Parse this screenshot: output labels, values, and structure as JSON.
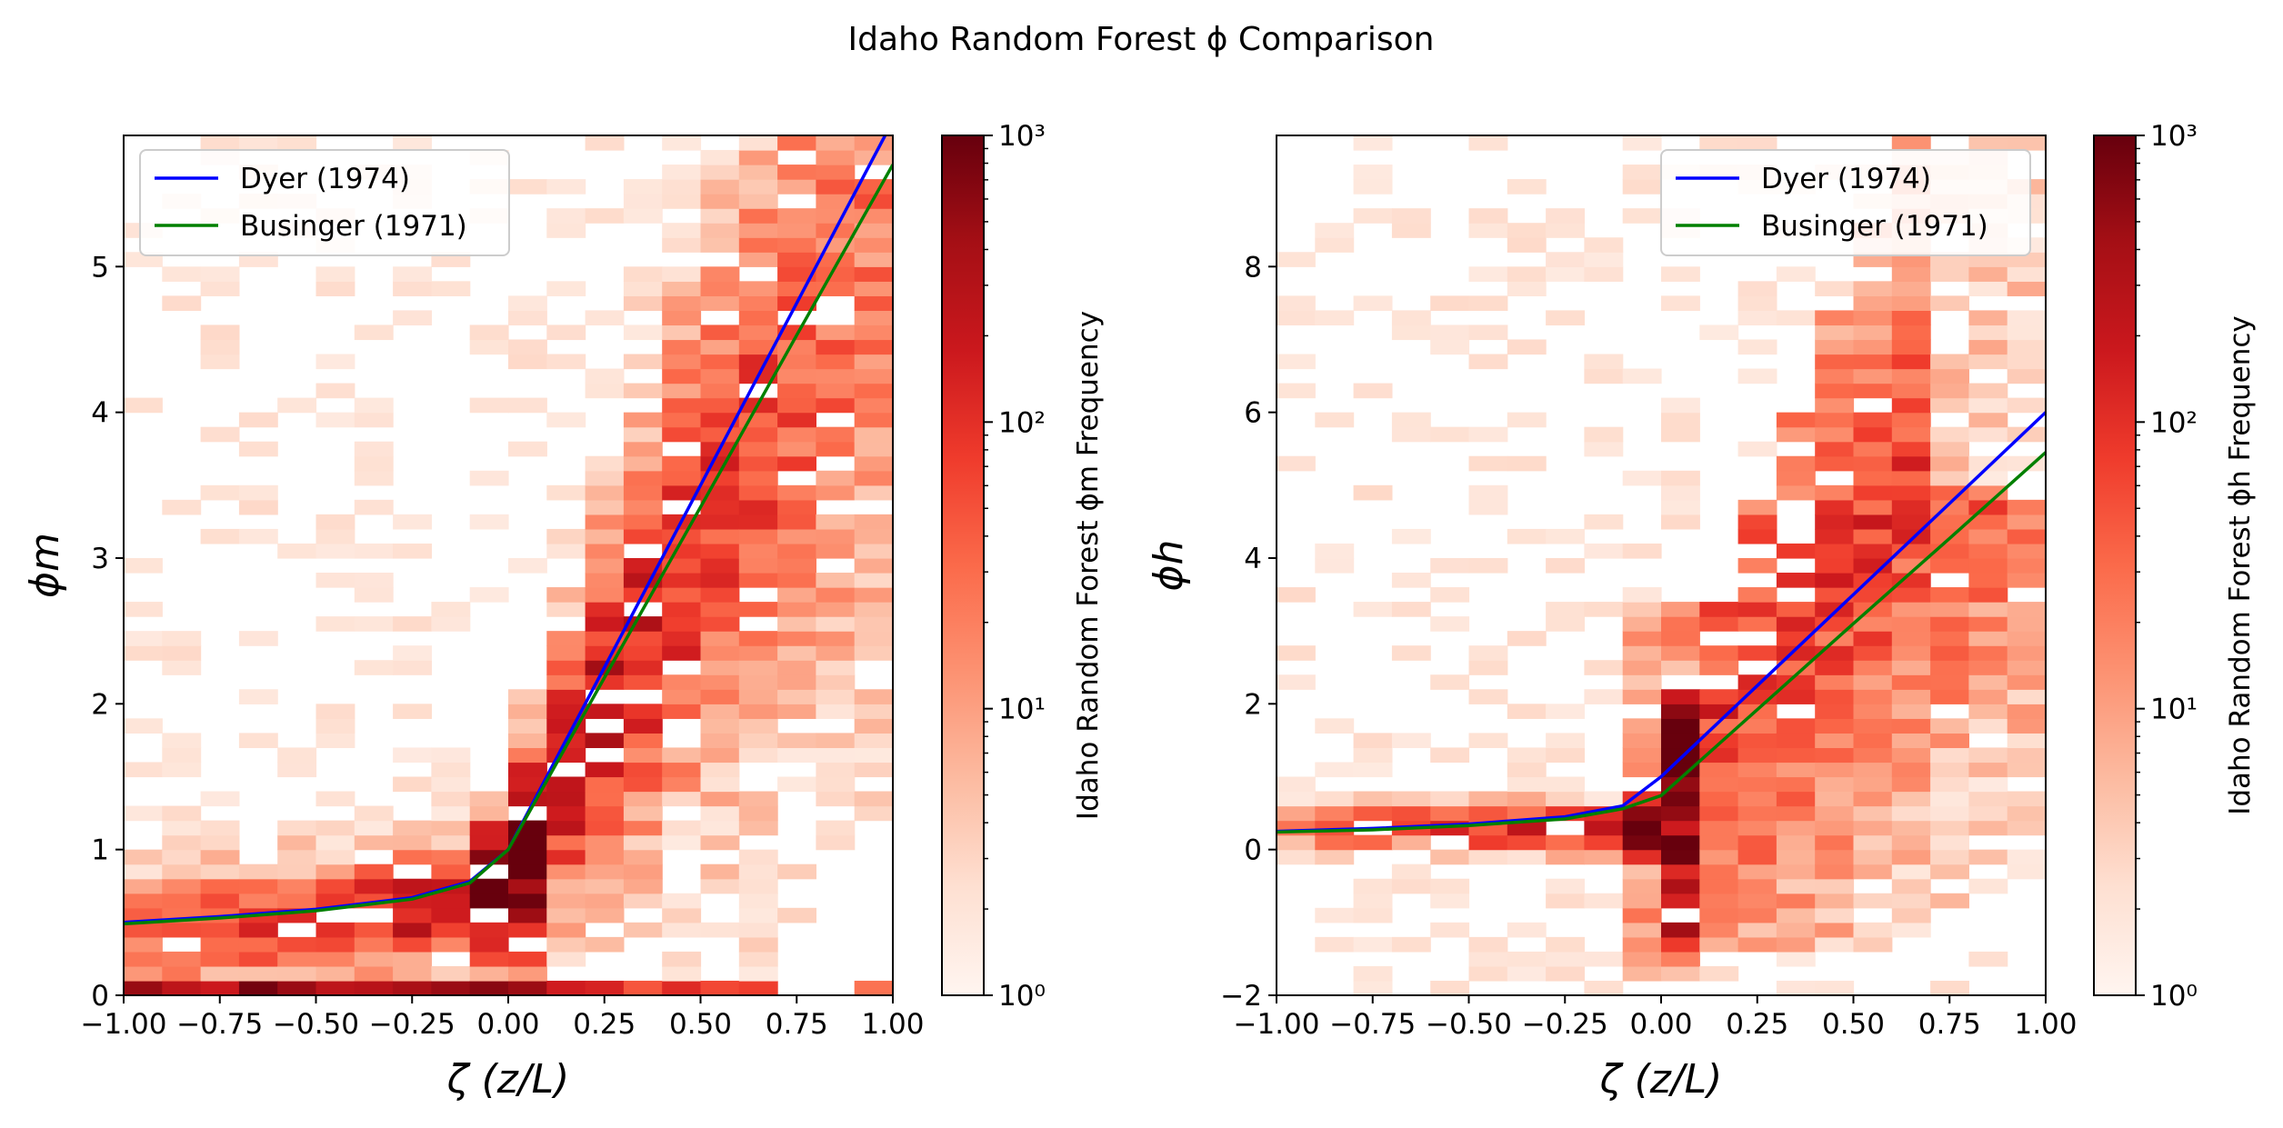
{
  "figure": {
    "title": "Idaho Random Forest ϕ Comparison"
  },
  "colors": {
    "dyer": "#0000ff",
    "businger": "#008000",
    "colormap": [
      "#fff5f0",
      "#fee0d2",
      "#fcbba1",
      "#fc9272",
      "#fb6a4a",
      "#ef3b2c",
      "#cb181d",
      "#a50f15",
      "#67000d"
    ]
  },
  "chart_data": [
    {
      "type": "heatmap",
      "panel": "left",
      "ylabel": "ϕm",
      "xlabel": "ζ (z/L)",
      "xlim": [
        -1.0,
        1.0
      ],
      "ylim": [
        0,
        5.9
      ],
      "xticks": [
        "−1.00",
        "−0.75",
        "−0.50",
        "−0.25",
        "0.00",
        "0.25",
        "0.50",
        "0.75",
        "1.00"
      ],
      "xtick_values": [
        -1.0,
        -0.75,
        -0.5,
        -0.25,
        0.0,
        0.25,
        0.5,
        0.75,
        1.0
      ],
      "yticks": [
        "0",
        "1",
        "2",
        "3",
        "4",
        "5"
      ],
      "ytick_values": [
        0,
        1,
        2,
        3,
        4,
        5
      ],
      "grid": false,
      "legend_position": "upper-left",
      "series": [
        {
          "name": "Dyer (1974)",
          "color": "#0000ff",
          "x": [
            -1.0,
            -0.75,
            -0.5,
            -0.25,
            -0.1,
            0.0,
            0.25,
            0.5,
            0.75,
            1.0
          ],
          "y": [
            0.5,
            0.54,
            0.59,
            0.67,
            0.78,
            1.0,
            2.25,
            3.5,
            4.75,
            6.0
          ]
        },
        {
          "name": "Businger (1971)",
          "color": "#008000",
          "x": [
            -1.0,
            -0.75,
            -0.5,
            -0.25,
            -0.1,
            0.0,
            0.25,
            0.5,
            0.75,
            1.0
          ],
          "y": [
            0.49,
            0.53,
            0.58,
            0.66,
            0.77,
            1.0,
            2.18,
            3.35,
            4.53,
            5.7
          ]
        }
      ],
      "histogram": {
        "x_bins": 20,
        "x_range": [
          -1.0,
          1.0
        ],
        "y_range": [
          0,
          5.9
        ],
        "y_bins": 59,
        "count_range": [
          1,
          1000
        ],
        "log_scale": true
      },
      "colorbar": {
        "label": "Idaho Random Forest ϕm Frequency",
        "ticks": [
          "10⁰",
          "10¹",
          "10²",
          "10³"
        ],
        "tick_values": [
          1,
          10,
          100,
          1000
        ]
      }
    },
    {
      "type": "heatmap",
      "panel": "right",
      "ylabel": "ϕh",
      "xlabel": "ζ (z/L)",
      "xlim": [
        -1.0,
        1.0
      ],
      "ylim": [
        -2,
        9.8
      ],
      "xticks": [
        "−1.00",
        "−0.75",
        "−0.50",
        "−0.25",
        "0.00",
        "0.25",
        "0.50",
        "0.75",
        "1.00"
      ],
      "xtick_values": [
        -1.0,
        -0.75,
        -0.5,
        -0.25,
        0.0,
        0.25,
        0.5,
        0.75,
        1.0
      ],
      "yticks": [
        "−2",
        "0",
        "2",
        "4",
        "6",
        "8"
      ],
      "ytick_values": [
        -2,
        0,
        2,
        4,
        6,
        8
      ],
      "grid": false,
      "legend_position": "upper-right",
      "series": [
        {
          "name": "Dyer (1974)",
          "color": "#0000ff",
          "x": [
            -1.0,
            -0.75,
            -0.5,
            -0.25,
            -0.1,
            0.0,
            0.25,
            0.5,
            0.75,
            1.0
          ],
          "y": [
            0.25,
            0.29,
            0.35,
            0.45,
            0.6,
            1.0,
            2.25,
            3.5,
            4.75,
            6.0
          ]
        },
        {
          "name": "Businger (1971)",
          "color": "#008000",
          "x": [
            -1.0,
            -0.75,
            -0.5,
            -0.25,
            -0.1,
            0.0,
            0.25,
            0.5,
            0.75,
            1.0
          ],
          "y": [
            0.24,
            0.27,
            0.33,
            0.42,
            0.56,
            0.74,
            1.92,
            3.1,
            4.27,
            5.45
          ]
        }
      ],
      "histogram": {
        "x_bins": 20,
        "x_range": [
          -1.0,
          1.0
        ],
        "y_range": [
          -2,
          9.8
        ],
        "y_bins": 59,
        "count_range": [
          1,
          1000
        ],
        "log_scale": true
      },
      "colorbar": {
        "label": "Idaho Random Forest ϕh Frequency",
        "ticks": [
          "10⁰",
          "10¹",
          "10²",
          "10³"
        ],
        "tick_values": [
          1,
          10,
          100,
          1000
        ]
      }
    }
  ]
}
